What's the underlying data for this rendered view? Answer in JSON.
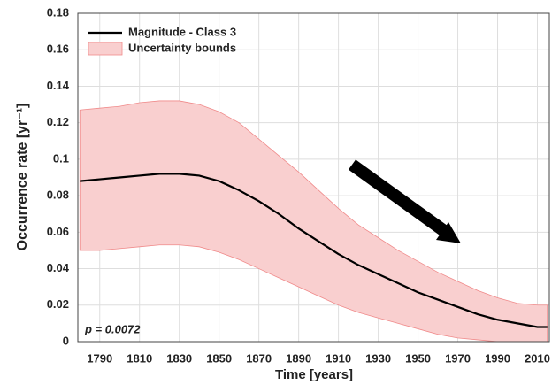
{
  "chart_data": {
    "type": "line",
    "xlabel": "Time [years]",
    "ylabel": "Occurrence rate [yr⁻¹]",
    "annotation": "p = 0.0072",
    "x": [
      1780,
      1790,
      1800,
      1810,
      1820,
      1830,
      1840,
      1850,
      1860,
      1870,
      1880,
      1890,
      1900,
      1910,
      1920,
      1930,
      1940,
      1950,
      1960,
      1970,
      1980,
      1990,
      2000,
      2010,
      2015
    ],
    "series": [
      {
        "name": "Magnitude - Class 3",
        "color": "#000000",
        "values": [
          0.088,
          0.089,
          0.09,
          0.091,
          0.092,
          0.092,
          0.091,
          0.088,
          0.083,
          0.077,
          0.07,
          0.062,
          0.055,
          0.048,
          0.042,
          0.037,
          0.032,
          0.027,
          0.023,
          0.019,
          0.015,
          0.012,
          0.01,
          0.008,
          0.008
        ]
      }
    ],
    "band": {
      "name": "Uncertainty bounds",
      "color": "#f9cfcf",
      "edge": "#f08a8a",
      "upper": [
        0.127,
        0.128,
        0.129,
        0.131,
        0.132,
        0.132,
        0.13,
        0.126,
        0.12,
        0.111,
        0.102,
        0.093,
        0.083,
        0.073,
        0.064,
        0.057,
        0.05,
        0.044,
        0.038,
        0.033,
        0.028,
        0.024,
        0.021,
        0.02,
        0.02
      ],
      "lower": [
        0.05,
        0.05,
        0.051,
        0.052,
        0.053,
        0.053,
        0.052,
        0.049,
        0.045,
        0.04,
        0.035,
        0.03,
        0.025,
        0.02,
        0.016,
        0.013,
        0.01,
        0.007,
        0.004,
        0.002,
        0.001,
        0,
        0,
        0,
        0
      ]
    },
    "xlim": [
      1779,
      2016
    ],
    "ylim": [
      0,
      0.18
    ],
    "xticks": [
      1790,
      1810,
      1830,
      1850,
      1870,
      1890,
      1910,
      1930,
      1950,
      1970,
      1990,
      2010
    ],
    "yticks": [
      0,
      0.02,
      0.04,
      0.06,
      0.08,
      0.1,
      0.12,
      0.14,
      0.16,
      0.18
    ],
    "grid": true
  }
}
